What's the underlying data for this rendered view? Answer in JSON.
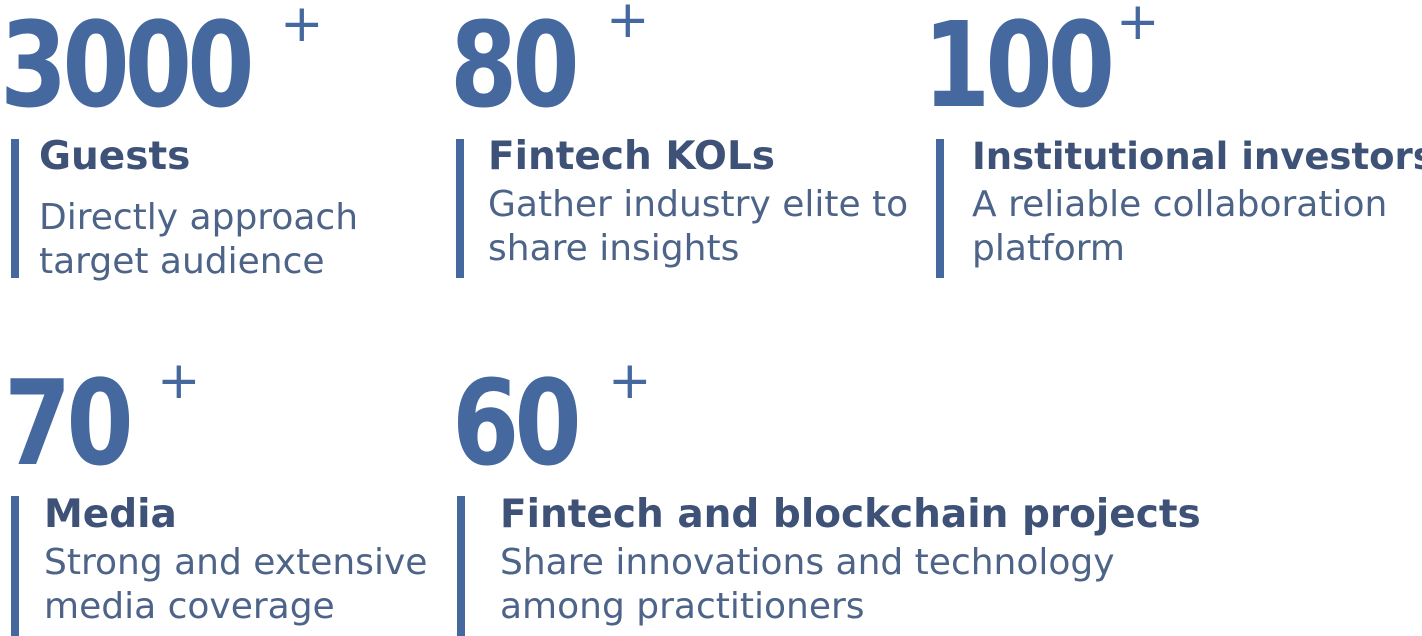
{
  "colors": {
    "number": "#45689f",
    "accent_bar": "#45689f",
    "title": "#3e5277",
    "description": "#4d6488"
  },
  "stats": [
    {
      "number": "3000",
      "plus": "+",
      "title": "Guests",
      "description_lines": [
        "Directly approach",
        "target audience"
      ]
    },
    {
      "number": "80",
      "plus": "+",
      "title": "Fintech KOLs",
      "description_lines": [
        "Gather industry elite to",
        "share insights"
      ]
    },
    {
      "number": "100",
      "plus": "+",
      "title": "Institutional investors",
      "description_lines": [
        "A reliable collaboration",
        "platform"
      ]
    },
    {
      "number": "70",
      "plus": "+",
      "title": "Media",
      "description_lines": [
        "Strong and extensive",
        "media coverage"
      ]
    },
    {
      "number": "60",
      "plus": "+",
      "title": "Fintech and blockchain projects",
      "description_lines": [
        "Share innovations and technology",
        "among practitioners"
      ]
    }
  ]
}
